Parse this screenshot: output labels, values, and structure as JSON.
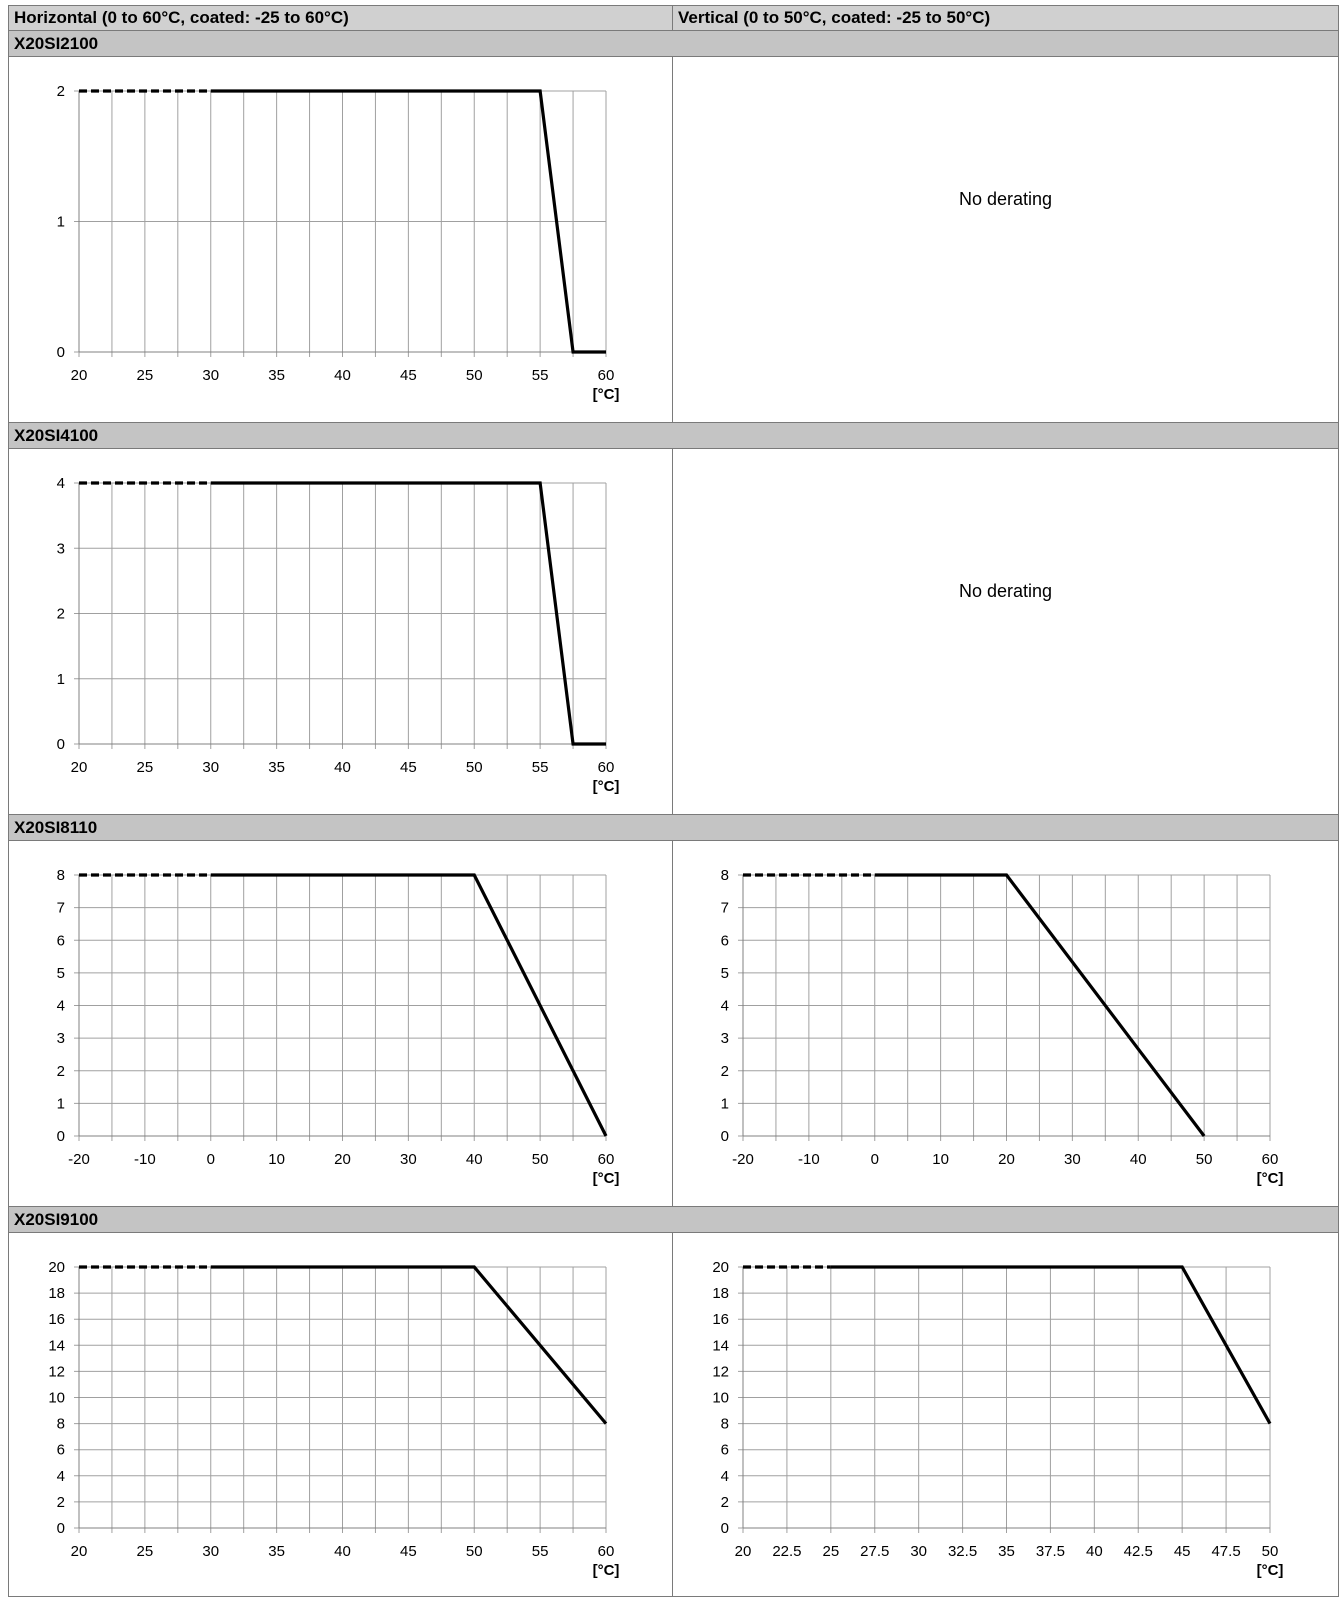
{
  "headers": {
    "horizontal": "Horizontal (0 to 60°C, coated: -25 to 60°C)",
    "vertical": "Vertical (0 to 50°C, coated: -25 to 50°C)"
  },
  "x_unit_label": "[°C]",
  "no_derating_text": "No derating",
  "modules": [
    {
      "name": "X20SI2100",
      "horizontal_chart": 0,
      "vertical_chart": null
    },
    {
      "name": "X20SI4100",
      "horizontal_chart": 1,
      "vertical_chart": null
    },
    {
      "name": "X20SI8110",
      "horizontal_chart": 2,
      "vertical_chart": 3
    },
    {
      "name": "X20SI9100",
      "horizontal_chart": 4,
      "vertical_chart": 5
    }
  ],
  "chart_data": [
    {
      "type": "line",
      "module": "X20SI2100",
      "orientation": "horizontal",
      "xlabel": "[°C]",
      "xlim": [
        20,
        60
      ],
      "ylim": [
        0,
        2
      ],
      "x_ticks": [
        20,
        25,
        30,
        35,
        40,
        45,
        50,
        55,
        60
      ],
      "y_ticks": [
        0,
        1,
        2
      ],
      "x_minor_step": 2.5,
      "grid": true,
      "dashed_segment": {
        "x": [
          20,
          30
        ],
        "y": [
          2,
          2
        ]
      },
      "x": [
        30,
        55,
        57.5,
        60
      ],
      "y": [
        2,
        2,
        0,
        0
      ]
    },
    {
      "type": "line",
      "module": "X20SI4100",
      "orientation": "horizontal",
      "xlabel": "[°C]",
      "xlim": [
        20,
        60
      ],
      "ylim": [
        0,
        4
      ],
      "x_ticks": [
        20,
        25,
        30,
        35,
        40,
        45,
        50,
        55,
        60
      ],
      "y_ticks": [
        0,
        1,
        2,
        3,
        4
      ],
      "x_minor_step": 2.5,
      "grid": true,
      "dashed_segment": {
        "x": [
          20,
          30
        ],
        "y": [
          4,
          4
        ]
      },
      "x": [
        30,
        55,
        57.5,
        60
      ],
      "y": [
        4,
        4,
        0,
        0
      ]
    },
    {
      "type": "line",
      "module": "X20SI8110",
      "orientation": "horizontal",
      "xlabel": "[°C]",
      "xlim": [
        -20,
        60
      ],
      "ylim": [
        0,
        8
      ],
      "x_ticks": [
        -20,
        -10,
        0,
        10,
        20,
        30,
        40,
        50,
        60
      ],
      "y_ticks": [
        0,
        1,
        2,
        3,
        4,
        5,
        6,
        7,
        8
      ],
      "x_minor_step": 5,
      "grid": true,
      "dashed_segment": {
        "x": [
          -20,
          0
        ],
        "y": [
          8,
          8
        ]
      },
      "x": [
        0,
        40,
        60
      ],
      "y": [
        8,
        8,
        0
      ]
    },
    {
      "type": "line",
      "module": "X20SI8110",
      "orientation": "vertical",
      "xlabel": "[°C]",
      "xlim": [
        -20,
        60
      ],
      "ylim": [
        0,
        8
      ],
      "x_ticks": [
        -20,
        -10,
        0,
        10,
        20,
        30,
        40,
        50,
        60
      ],
      "y_ticks": [
        0,
        1,
        2,
        3,
        4,
        5,
        6,
        7,
        8
      ],
      "x_minor_step": 5,
      "grid": true,
      "dashed_segment": {
        "x": [
          -20,
          0
        ],
        "y": [
          8,
          8
        ]
      },
      "x": [
        0,
        20,
        50
      ],
      "y": [
        8,
        8,
        0
      ]
    },
    {
      "type": "line",
      "module": "X20SI9100",
      "orientation": "horizontal",
      "xlabel": "[°C]",
      "xlim": [
        20,
        60
      ],
      "ylim": [
        0,
        20
      ],
      "x_ticks": [
        20,
        25,
        30,
        35,
        40,
        45,
        50,
        55,
        60
      ],
      "y_ticks": [
        0,
        2,
        4,
        6,
        8,
        10,
        12,
        14,
        16,
        18,
        20
      ],
      "x_minor_step": 2.5,
      "grid": true,
      "dashed_segment": {
        "x": [
          20,
          30
        ],
        "y": [
          20,
          20
        ]
      },
      "x": [
        30,
        50,
        60
      ],
      "y": [
        20,
        20,
        8
      ]
    },
    {
      "type": "line",
      "module": "X20SI9100",
      "orientation": "vertical",
      "xlabel": "[°C]",
      "xlim": [
        20,
        50
      ],
      "ylim": [
        0,
        20
      ],
      "x_ticks": [
        20,
        22.5,
        25,
        27.5,
        30,
        32.5,
        35,
        37.5,
        40,
        42.5,
        45,
        47.5,
        50
      ],
      "y_ticks": [
        0,
        2,
        4,
        6,
        8,
        10,
        12,
        14,
        16,
        18,
        20
      ],
      "x_minor_step": 2.5,
      "grid": true,
      "dashed_segment": {
        "x": [
          20,
          25
        ],
        "y": [
          20,
          20
        ]
      },
      "x": [
        25,
        45,
        50
      ],
      "y": [
        20,
        20,
        8
      ]
    }
  ]
}
